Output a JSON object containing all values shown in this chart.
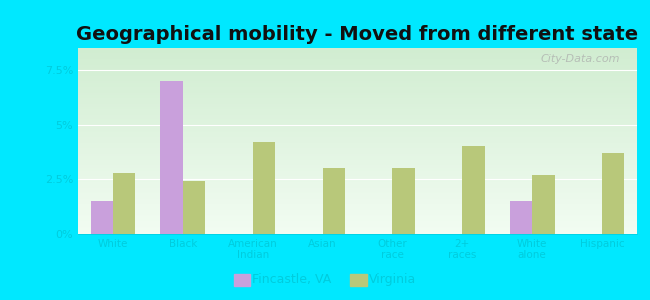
{
  "title": "Geographical mobility - Moved from different state",
  "categories": [
    "White",
    "Black",
    "American\nIndian",
    "Asian",
    "Other\nrace",
    "2+\nraces",
    "White\nalone",
    "Hispanic"
  ],
  "fincastle": [
    1.5,
    7.0,
    0.0,
    0.0,
    0.0,
    0.0,
    1.5,
    0.0
  ],
  "virginia": [
    2.8,
    2.4,
    4.2,
    3.0,
    3.0,
    4.0,
    2.7,
    3.7
  ],
  "fincastle_color": "#c9a0dc",
  "virginia_color": "#b8c87a",
  "background_outer": "#00e8ff",
  "ylim": [
    0,
    8.5
  ],
  "yticks": [
    0,
    2.5,
    5.0,
    7.5
  ],
  "ytick_labels": [
    "0%",
    "2.5%",
    "5%",
    "7.5%"
  ],
  "bar_width": 0.32,
  "legend_fincastle": "Fincastle, VA",
  "legend_virginia": "Virginia",
  "title_fontsize": 14,
  "watermark": "City-Data.com",
  "grid_color": "#ffffff",
  "tick_color": "#00ccdd",
  "label_color": "#00ccdd"
}
